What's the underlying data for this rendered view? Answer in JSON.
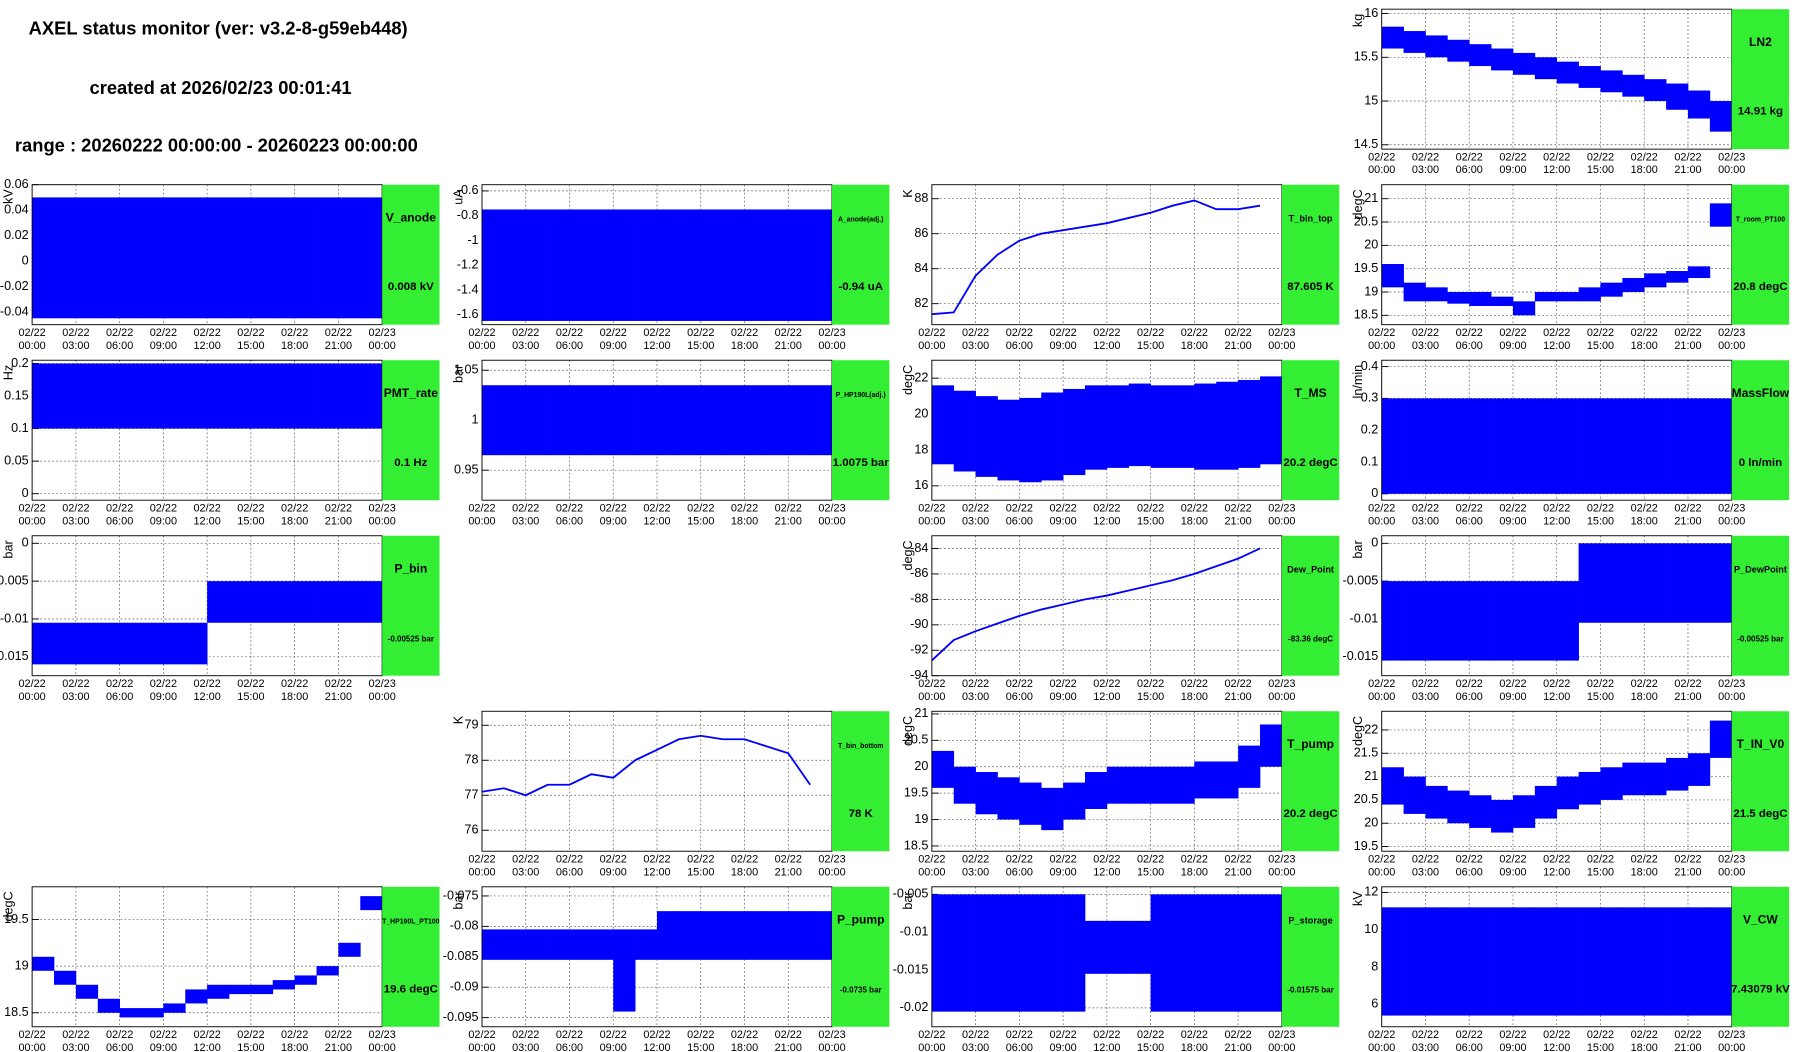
{
  "header": {
    "title": "AXEL status monitor (ver: v3.2-8-g59eb448)",
    "created": "created at 2026/02/23 00:01:41",
    "range": "range : 20260222 00:00:00 - 20260223 00:00:00"
  },
  "time_axis": {
    "xlim": [
      0,
      24
    ],
    "xticks": [
      {
        "value": 0,
        "label": "02/22 00:00"
      },
      {
        "value": 3,
        "label": "02/22 03:00"
      },
      {
        "value": 6,
        "label": "02/22 06:00"
      },
      {
        "value": 9,
        "label": "02/22 09:00"
      },
      {
        "value": 12,
        "label": "02/22 12:00"
      },
      {
        "value": 15,
        "label": "02/22 15:00"
      },
      {
        "value": 18,
        "label": "02/22 18:00"
      },
      {
        "value": 21,
        "label": "02/22 21:00"
      },
      {
        "value": 24,
        "label": "02/23 00:00"
      }
    ],
    "x": [
      0,
      1.5,
      3,
      4.5,
      6,
      7.5,
      9,
      10.5,
      12,
      13.5,
      15,
      16.5,
      18,
      19.5,
      21,
      22.5
    ]
  },
  "chart_data": [
    {
      "type": "band",
      "name": "LN2",
      "ylabel": "kg",
      "status": "14.91 kg",
      "color": "#0000ff",
      "grid": true,
      "ylim": [
        14.45,
        16.05
      ],
      "yticks": [
        14.5,
        15,
        15.5,
        16
      ],
      "lower": [
        15.6,
        15.55,
        15.5,
        15.45,
        15.4,
        15.35,
        15.3,
        15.25,
        15.2,
        15.15,
        15.1,
        15.05,
        15.0,
        14.9,
        14.8,
        14.65
      ],
      "upper": [
        15.85,
        15.8,
        15.75,
        15.7,
        15.65,
        15.6,
        15.55,
        15.5,
        15.45,
        15.4,
        15.35,
        15.3,
        15.25,
        15.2,
        15.12,
        15.0
      ]
    },
    {
      "type": "band",
      "name": "V_anode",
      "ylabel": "kV",
      "status": "0.008 kV",
      "color": "#0000ff",
      "grid": true,
      "ylim": [
        -0.05,
        0.06
      ],
      "yticks": [
        -0.04,
        -0.02,
        0,
        0.02,
        0.04,
        0.06
      ],
      "lower": [
        -0.045,
        -0.045,
        -0.045,
        -0.045,
        -0.045,
        -0.045,
        -0.045,
        -0.045,
        -0.045,
        -0.045,
        -0.045,
        -0.045,
        -0.045,
        -0.045,
        -0.045,
        -0.045
      ],
      "upper": [
        0.05,
        0.05,
        0.05,
        0.05,
        0.05,
        0.05,
        0.05,
        0.05,
        0.05,
        0.05,
        0.05,
        0.05,
        0.05,
        0.05,
        0.05,
        0.05
      ]
    },
    {
      "type": "band",
      "name": "A_anode(adj.)",
      "ylabel": "uA",
      "status": "-0.94 uA",
      "color": "#0000ff",
      "grid": true,
      "ylim": [
        -1.68,
        -0.55
      ],
      "yticks": [
        -1.6,
        -1.4,
        -1.2,
        -1,
        -0.8,
        -0.6
      ],
      "lower": [
        -1.65,
        -1.65,
        -1.65,
        -1.65,
        -1.65,
        -1.65,
        -1.65,
        -1.65,
        -1.65,
        -1.65,
        -1.65,
        -1.65,
        -1.65,
        -1.65,
        -1.65,
        -1.65
      ],
      "upper": [
        -0.75,
        -0.75,
        -0.75,
        -0.75,
        -0.75,
        -0.75,
        -0.75,
        -0.75,
        -0.75,
        -0.75,
        -0.75,
        -0.75,
        -0.75,
        -0.75,
        -0.75,
        -0.75
      ]
    },
    {
      "type": "line",
      "name": "T_bin_top",
      "ylabel": "K",
      "status": "87.605 K",
      "color": "#0000ff",
      "grid": true,
      "ylim": [
        80.8,
        88.8
      ],
      "yticks": [
        82,
        84,
        86,
        88
      ],
      "values": [
        81.4,
        81.5,
        83.6,
        84.8,
        85.6,
        86.0,
        86.2,
        86.4,
        86.6,
        86.9,
        87.2,
        87.6,
        87.9,
        87.4,
        87.4,
        87.6
      ]
    },
    {
      "type": "band",
      "name": "T_room_PT100",
      "ylabel": "degC",
      "status": "20.8 degC",
      "color": "#0000ff",
      "grid": true,
      "ylim": [
        18.3,
        21.3
      ],
      "yticks": [
        18.5,
        19,
        19.5,
        20,
        20.5,
        21
      ],
      "lower": [
        19.1,
        18.8,
        18.8,
        18.75,
        18.7,
        18.7,
        18.5,
        18.8,
        18.8,
        18.8,
        18.9,
        19.0,
        19.1,
        19.2,
        19.3,
        20.4
      ],
      "upper": [
        19.6,
        19.2,
        19.1,
        19.0,
        19.0,
        18.9,
        18.8,
        19.0,
        19.0,
        19.1,
        19.2,
        19.3,
        19.4,
        19.45,
        19.55,
        20.9
      ]
    },
    {
      "type": "band",
      "name": "PMT_rate",
      "ylabel": "Hz",
      "status": "0.1 Hz",
      "color": "#0000ff",
      "grid": true,
      "ylim": [
        -0.01,
        0.205
      ],
      "yticks": [
        0,
        0.05,
        0.1,
        0.15,
        0.2
      ],
      "lower": [
        0.1,
        0.1,
        0.1,
        0.1,
        0.1,
        0.1,
        0.1,
        0.1,
        0.1,
        0.1,
        0.1,
        0.1,
        0.1,
        0.1,
        0.1,
        0.1
      ],
      "upper": [
        0.2,
        0.2,
        0.2,
        0.2,
        0.2,
        0.2,
        0.2,
        0.2,
        0.2,
        0.2,
        0.2,
        0.2,
        0.2,
        0.2,
        0.2,
        0.2
      ]
    },
    {
      "type": "band",
      "name": "P_HP190L(adj.)",
      "ylabel": "bar",
      "status": "1.0075 bar",
      "color": "#0000ff",
      "grid": true,
      "ylim": [
        0.92,
        1.06
      ],
      "yticks": [
        0.95,
        1,
        1.05
      ],
      "lower": [
        0.965,
        0.965,
        0.965,
        0.965,
        0.965,
        0.965,
        0.965,
        0.965,
        0.965,
        0.965,
        0.965,
        0.965,
        0.965,
        0.965,
        0.965,
        0.965
      ],
      "upper": [
        1.035,
        1.035,
        1.035,
        1.035,
        1.035,
        1.035,
        1.035,
        1.035,
        1.035,
        1.035,
        1.035,
        1.035,
        1.035,
        1.035,
        1.035,
        1.035
      ]
    },
    {
      "type": "band",
      "name": "T_MS",
      "ylabel": "degC",
      "status": "20.2 degC",
      "color": "#0000ff",
      "grid": true,
      "ylim": [
        15.2,
        23
      ],
      "yticks": [
        16,
        18,
        20,
        22
      ],
      "lower": [
        17.2,
        16.8,
        16.5,
        16.3,
        16.2,
        16.3,
        16.6,
        16.9,
        17.0,
        17.1,
        17.0,
        17.0,
        16.9,
        16.9,
        17.0,
        17.2
      ],
      "upper": [
        21.6,
        21.3,
        21.0,
        20.8,
        20.9,
        21.2,
        21.4,
        21.6,
        21.6,
        21.7,
        21.6,
        21.6,
        21.7,
        21.8,
        21.9,
        22.1
      ]
    },
    {
      "type": "band",
      "name": "MassFlow",
      "ylabel": "ln/min",
      "status": "0 ln/min",
      "color": "#0000ff",
      "grid": true,
      "ylim": [
        -0.02,
        0.42
      ],
      "yticks": [
        0,
        0.1,
        0.2,
        0.3,
        0.4
      ],
      "lower": [
        0,
        0,
        0,
        0,
        0,
        0,
        0,
        0,
        0,
        0,
        0,
        0,
        0,
        0,
        0,
        0
      ],
      "upper": [
        0.3,
        0.3,
        0.3,
        0.3,
        0.3,
        0.3,
        0.3,
        0.3,
        0.3,
        0.3,
        0.3,
        0.3,
        0.3,
        0.3,
        0.3,
        0.3
      ]
    },
    {
      "type": "band",
      "name": "P_bin",
      "ylabel": "bar",
      "status": "-0.00525 bar",
      "color": "#0000ff",
      "grid": true,
      "ylim": [
        -0.0175,
        0.001
      ],
      "yticks": [
        -0.015,
        -0.01,
        -0.005,
        0
      ],
      "lower": [
        -0.016,
        -0.016,
        -0.016,
        -0.016,
        -0.016,
        -0.016,
        -0.016,
        -0.016,
        -0.0105,
        -0.0105,
        -0.0105,
        -0.0105,
        -0.0105,
        -0.0105,
        -0.0105,
        -0.0105
      ],
      "upper": [
        -0.0105,
        -0.0105,
        -0.0105,
        -0.0105,
        -0.0105,
        -0.0105,
        -0.0105,
        -0.0105,
        -0.005,
        -0.005,
        -0.005,
        -0.005,
        -0.005,
        -0.005,
        -0.005,
        -0.005
      ]
    },
    {
      "type": "line",
      "name": "Dew_Point",
      "ylabel": "degC",
      "status": "-83.36 degC",
      "color": "#0000ff",
      "grid": true,
      "ylim": [
        -94,
        -83
      ],
      "yticks": [
        -94,
        -92,
        -90,
        -88,
        -86,
        -84
      ],
      "values": [
        -92.8,
        -91.2,
        -90.5,
        -89.9,
        -89.3,
        -88.8,
        -88.4,
        -88.0,
        -87.7,
        -87.3,
        -86.9,
        -86.5,
        -86.0,
        -85.4,
        -84.8,
        -84.0
      ]
    },
    {
      "type": "band",
      "name": "P_DewPoint",
      "ylabel": "bar",
      "status": "-0.00525 bar",
      "color": "#0000ff",
      "grid": true,
      "ylim": [
        -0.0175,
        0.001
      ],
      "yticks": [
        -0.015,
        -0.01,
        -0.005,
        0
      ],
      "lower": [
        -0.0155,
        -0.0155,
        -0.0155,
        -0.0155,
        -0.0155,
        -0.0155,
        -0.0155,
        -0.0155,
        -0.0155,
        -0.0105,
        -0.0105,
        -0.0105,
        -0.0105,
        -0.0105,
        -0.0105,
        -0.0105
      ],
      "upper": [
        -0.005,
        -0.005,
        -0.005,
        -0.005,
        -0.005,
        -0.005,
        -0.005,
        -0.005,
        -0.005,
        0,
        0,
        0,
        0,
        0,
        0,
        0
      ]
    },
    {
      "type": "line",
      "name": "T_bin_bottom",
      "ylabel": "K",
      "status": "78 K",
      "color": "#0000ff",
      "grid": true,
      "ylim": [
        75.4,
        79.4
      ],
      "yticks": [
        76,
        77,
        78,
        79
      ],
      "values": [
        77.1,
        77.2,
        77.0,
        77.3,
        77.3,
        77.6,
        77.5,
        78.0,
        78.3,
        78.6,
        78.7,
        78.6,
        78.6,
        78.4,
        78.2,
        77.3
      ]
    },
    {
      "type": "band",
      "name": "T_pump",
      "ylabel": "degC",
      "status": "20.2 degC",
      "color": "#0000ff",
      "grid": true,
      "ylim": [
        18.4,
        21.05
      ],
      "yticks": [
        18.5,
        19,
        19.5,
        20,
        20.5,
        21
      ],
      "lower": [
        19.6,
        19.3,
        19.1,
        19.0,
        18.9,
        18.8,
        19.0,
        19.2,
        19.3,
        19.3,
        19.3,
        19.3,
        19.4,
        19.4,
        19.6,
        20.0
      ],
      "upper": [
        20.3,
        20.0,
        19.9,
        19.8,
        19.7,
        19.6,
        19.7,
        19.9,
        20.0,
        20.0,
        20.0,
        20.0,
        20.1,
        20.1,
        20.4,
        20.8
      ]
    },
    {
      "type": "band",
      "name": "T_IN_V0",
      "ylabel": "degC",
      "status": "21.5 degC",
      "color": "#0000ff",
      "grid": true,
      "ylim": [
        19.4,
        22.4
      ],
      "yticks": [
        19.5,
        20,
        20.5,
        21,
        21.5,
        22
      ],
      "lower": [
        20.4,
        20.2,
        20.1,
        20.0,
        19.9,
        19.8,
        19.9,
        20.1,
        20.3,
        20.4,
        20.5,
        20.6,
        20.6,
        20.7,
        20.8,
        21.4
      ],
      "upper": [
        21.2,
        21.0,
        20.8,
        20.7,
        20.6,
        20.5,
        20.6,
        20.8,
        21.0,
        21.1,
        21.2,
        21.3,
        21.3,
        21.4,
        21.5,
        22.2
      ]
    },
    {
      "type": "band",
      "name": "T_HP190L_PT100",
      "ylabel": "degC",
      "status": "19.6 degC",
      "color": "#0000ff",
      "grid": true,
      "ylim": [
        18.35,
        19.85
      ],
      "yticks": [
        18.5,
        19,
        19.5
      ],
      "lower": [
        18.95,
        18.8,
        18.65,
        18.5,
        18.45,
        18.45,
        18.5,
        18.6,
        18.65,
        18.7,
        18.7,
        18.75,
        18.8,
        18.9,
        19.1,
        19.6
      ],
      "upper": [
        19.1,
        18.95,
        18.8,
        18.65,
        18.55,
        18.55,
        18.6,
        18.75,
        18.8,
        18.8,
        18.8,
        18.85,
        18.9,
        19.0,
        19.25,
        19.75
      ]
    },
    {
      "type": "band",
      "name": "P_pump",
      "ylabel": "bar",
      "status": "-0.0735 bar",
      "color": "#0000ff",
      "grid": true,
      "ylim": [
        -0.0965,
        -0.0735
      ],
      "yticks": [
        -0.095,
        -0.09,
        -0.085,
        -0.08,
        -0.075
      ],
      "lower": [
        -0.0855,
        -0.0855,
        -0.0855,
        -0.0855,
        -0.0855,
        -0.0855,
        -0.094,
        -0.0855,
        -0.0855,
        -0.0855,
        -0.0855,
        -0.0855,
        -0.0855,
        -0.0855,
        -0.0855,
        -0.0855
      ],
      "upper": [
        -0.0805,
        -0.0805,
        -0.0805,
        -0.0805,
        -0.0805,
        -0.0805,
        -0.0805,
        -0.0805,
        -0.0775,
        -0.0775,
        -0.0775,
        -0.0775,
        -0.0775,
        -0.0775,
        -0.0775,
        -0.0775
      ]
    },
    {
      "type": "band",
      "name": "P_storage",
      "ylabel": "bar",
      "status": "-0.01575 bar",
      "color": "#0000ff",
      "grid": true,
      "ylim": [
        -0.0225,
        -0.004
      ],
      "yticks": [
        -0.02,
        -0.015,
        -0.01,
        -0.005
      ],
      "lower": [
        -0.0205,
        -0.0205,
        -0.0205,
        -0.0205,
        -0.0205,
        -0.0205,
        -0.0205,
        -0.0155,
        -0.0155,
        -0.0155,
        -0.0205,
        -0.0205,
        -0.0205,
        -0.0205,
        -0.0205,
        -0.0205
      ],
      "upper": [
        -0.005,
        -0.005,
        -0.005,
        -0.005,
        -0.005,
        -0.005,
        -0.005,
        -0.0085,
        -0.0085,
        -0.0085,
        -0.005,
        -0.005,
        -0.005,
        -0.005,
        -0.005,
        -0.005
      ]
    },
    {
      "type": "band",
      "name": "V_CW",
      "ylabel": "kV",
      "status": "7.43079 kV",
      "color": "#0000ff",
      "grid": true,
      "ylim": [
        4.8,
        12.3
      ],
      "yticks": [
        6,
        8,
        10,
        12
      ],
      "lower": [
        5.4,
        5.4,
        5.4,
        5.4,
        5.4,
        5.4,
        5.4,
        5.4,
        5.4,
        5.4,
        5.4,
        5.4,
        5.4,
        5.4,
        5.4,
        5.4
      ],
      "upper": [
        11.2,
        11.2,
        11.2,
        11.2,
        11.2,
        11.2,
        11.2,
        11.2,
        11.2,
        11.2,
        11.2,
        11.2,
        11.2,
        11.2,
        11.2,
        11.2
      ]
    }
  ]
}
